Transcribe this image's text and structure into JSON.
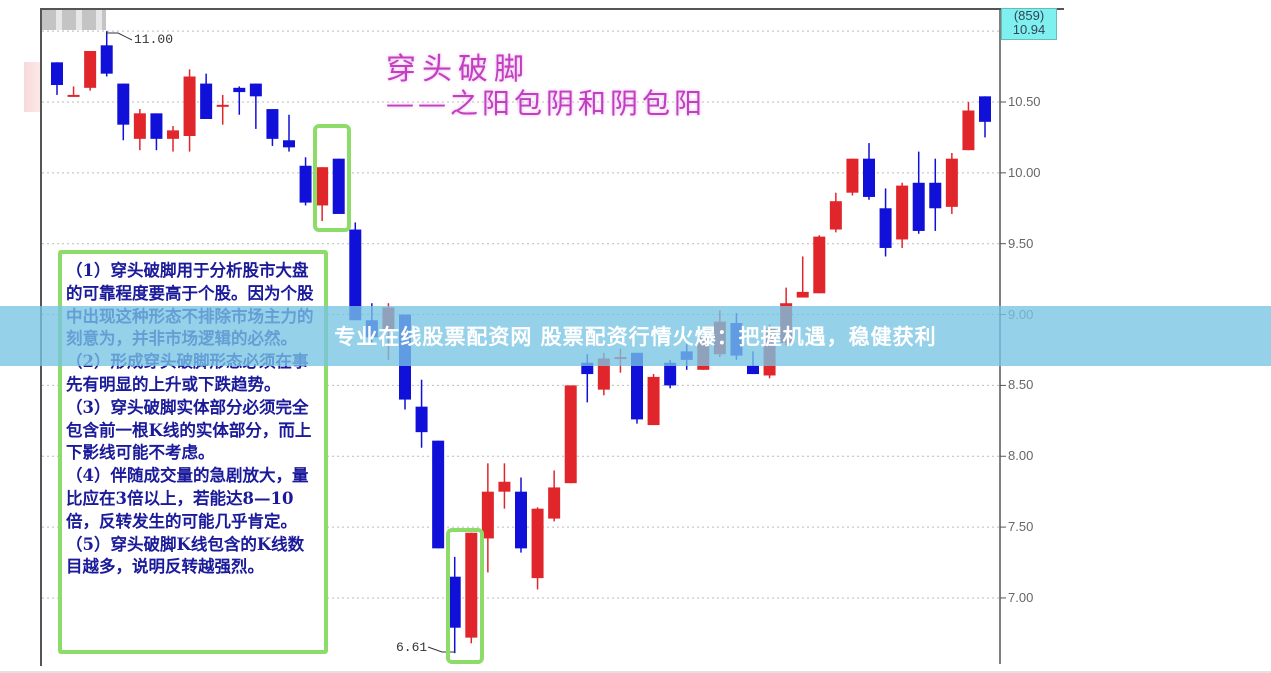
{
  "title": "穿头破脚",
  "subtitle": "——之阳包阴和阴包阳",
  "current_box": {
    "code": "(859)",
    "price": "10.94"
  },
  "annotations": {
    "high": "11.00",
    "low": "6.61"
  },
  "notes": [
    "（1）穿头破脚用于分析股市大盘的可靠程度要高于个股。因为个股中出现这种形态不排除市场主力的刻意为，并非市场逻辑的必然。",
    "（2）形成穿头破脚形态必须在事先有明显的上升或下跌趋势。",
    "（3）穿头破脚实体部分必须完全包含前一根K线的实体部分，而上下影线可能不考虑。",
    "（4）伴随成交量的急剧放大，量比应在3倍以上，若能达8—10倍，反转发生的可能几乎肯定。",
    "（5）穿头破脚K线包含的K线数目越多，说明反转越强烈。"
  ],
  "banner": "专业在线股票配资网 股票配资行情火爆：把握机遇，稳健获利",
  "colors": {
    "up": "#e0262a",
    "down": "#1010d8",
    "highlight": "#8ddc6a",
    "title": "#c040c0",
    "banner": "#78c4e4"
  },
  "chart_data": {
    "type": "candlestick",
    "ylim": [
      6.5,
      11.1
    ],
    "y_ticks": [
      "10.50",
      "10.00",
      "9.50",
      "9.00",
      "8.50",
      "8.00",
      "7.50",
      "7.00"
    ],
    "grid": true,
    "highlighted_candles": [
      [
        17,
        18
      ],
      [
        25,
        26
      ]
    ],
    "candles": [
      {
        "o": 10.78,
        "h": 10.78,
        "l": 10.55,
        "c": 10.62
      },
      {
        "o": 10.55,
        "h": 10.61,
        "l": 10.55,
        "c": 10.55
      },
      {
        "o": 10.6,
        "h": 10.86,
        "l": 10.58,
        "c": 10.86
      },
      {
        "o": 10.9,
        "h": 11.0,
        "l": 10.68,
        "c": 10.7
      },
      {
        "o": 10.63,
        "h": 10.63,
        "l": 10.23,
        "c": 10.34
      },
      {
        "o": 10.24,
        "h": 10.45,
        "l": 10.16,
        "c": 10.42
      },
      {
        "o": 10.42,
        "h": 10.42,
        "l": 10.16,
        "c": 10.24
      },
      {
        "o": 10.24,
        "h": 10.33,
        "l": 10.15,
        "c": 10.3
      },
      {
        "o": 10.26,
        "h": 10.73,
        "l": 10.15,
        "c": 10.68
      },
      {
        "o": 10.63,
        "h": 10.7,
        "l": 10.38,
        "c": 10.38
      },
      {
        "o": 10.47,
        "h": 10.55,
        "l": 10.34,
        "c": 10.48
      },
      {
        "o": 10.6,
        "h": 10.61,
        "l": 10.41,
        "c": 10.57
      },
      {
        "o": 10.63,
        "h": 10.63,
        "l": 10.31,
        "c": 10.54
      },
      {
        "o": 10.45,
        "h": 10.45,
        "l": 10.19,
        "c": 10.24
      },
      {
        "o": 10.23,
        "h": 10.41,
        "l": 10.15,
        "c": 10.18
      },
      {
        "o": 10.05,
        "h": 10.11,
        "l": 9.77,
        "c": 9.79
      },
      {
        "o": 9.77,
        "h": 10.04,
        "l": 9.66,
        "c": 10.04
      },
      {
        "o": 10.1,
        "h": 10.1,
        "l": 9.71,
        "c": 9.71
      },
      {
        "o": 9.6,
        "h": 9.65,
        "l": 8.96,
        "c": 8.96
      },
      {
        "o": 8.96,
        "h": 9.08,
        "l": 8.8,
        "c": 8.84
      },
      {
        "o": 8.89,
        "h": 9.08,
        "l": 8.68,
        "c": 9.05
      },
      {
        "o": 9.0,
        "h": 9.0,
        "l": 8.33,
        "c": 8.4
      },
      {
        "o": 8.35,
        "h": 8.54,
        "l": 8.06,
        "c": 8.17
      },
      {
        "o": 8.11,
        "h": 8.11,
        "l": 7.35,
        "c": 7.35
      },
      {
        "o": 7.15,
        "h": 7.29,
        "l": 6.61,
        "c": 6.79
      },
      {
        "o": 6.72,
        "h": 7.46,
        "l": 6.68,
        "c": 7.46
      },
      {
        "o": 7.42,
        "h": 7.95,
        "l": 7.18,
        "c": 7.75
      },
      {
        "o": 7.75,
        "h": 7.95,
        "l": 7.63,
        "c": 7.82
      },
      {
        "o": 7.75,
        "h": 7.85,
        "l": 7.32,
        "c": 7.35
      },
      {
        "o": 7.14,
        "h": 7.64,
        "l": 7.06,
        "c": 7.63
      },
      {
        "o": 7.56,
        "h": 7.9,
        "l": 7.54,
        "c": 7.78
      },
      {
        "o": 7.81,
        "h": 8.5,
        "l": 7.81,
        "c": 8.5
      },
      {
        "o": 8.66,
        "h": 8.72,
        "l": 8.38,
        "c": 8.58
      },
      {
        "o": 8.47,
        "h": 8.73,
        "l": 8.43,
        "c": 8.69
      },
      {
        "o": 8.7,
        "h": 8.76,
        "l": 8.59,
        "c": 8.7
      },
      {
        "o": 8.73,
        "h": 8.73,
        "l": 8.23,
        "c": 8.26
      },
      {
        "o": 8.22,
        "h": 8.58,
        "l": 8.22,
        "c": 8.56
      },
      {
        "o": 8.66,
        "h": 8.68,
        "l": 8.48,
        "c": 8.5
      },
      {
        "o": 8.74,
        "h": 8.79,
        "l": 8.61,
        "c": 8.68
      },
      {
        "o": 8.61,
        "h": 8.87,
        "l": 8.61,
        "c": 8.84
      },
      {
        "o": 8.72,
        "h": 9.03,
        "l": 8.7,
        "c": 8.95
      },
      {
        "o": 8.94,
        "h": 9.01,
        "l": 8.68,
        "c": 8.71
      },
      {
        "o": 8.64,
        "h": 8.74,
        "l": 8.58,
        "c": 8.58
      },
      {
        "o": 8.57,
        "h": 8.93,
        "l": 8.55,
        "c": 8.9
      },
      {
        "o": 8.8,
        "h": 9.19,
        "l": 8.78,
        "c": 9.08
      },
      {
        "o": 9.12,
        "h": 9.41,
        "l": 9.12,
        "c": 9.16
      },
      {
        "o": 9.15,
        "h": 9.56,
        "l": 9.15,
        "c": 9.55
      },
      {
        "o": 9.6,
        "h": 9.86,
        "l": 9.58,
        "c": 9.8
      },
      {
        "o": 9.86,
        "h": 10.1,
        "l": 9.84,
        "c": 10.1
      },
      {
        "o": 10.1,
        "h": 10.21,
        "l": 9.81,
        "c": 9.83
      },
      {
        "o": 9.75,
        "h": 9.89,
        "l": 9.41,
        "c": 9.47
      },
      {
        "o": 9.53,
        "h": 9.93,
        "l": 9.47,
        "c": 9.91
      },
      {
        "o": 9.93,
        "h": 10.15,
        "l": 9.57,
        "c": 9.59
      },
      {
        "o": 9.93,
        "h": 10.1,
        "l": 9.59,
        "c": 9.75
      },
      {
        "o": 9.76,
        "h": 10.14,
        "l": 9.71,
        "c": 10.1
      },
      {
        "o": 10.16,
        "h": 10.5,
        "l": 10.16,
        "c": 10.44
      },
      {
        "o": 10.54,
        "h": 10.54,
        "l": 10.25,
        "c": 10.36
      }
    ]
  }
}
